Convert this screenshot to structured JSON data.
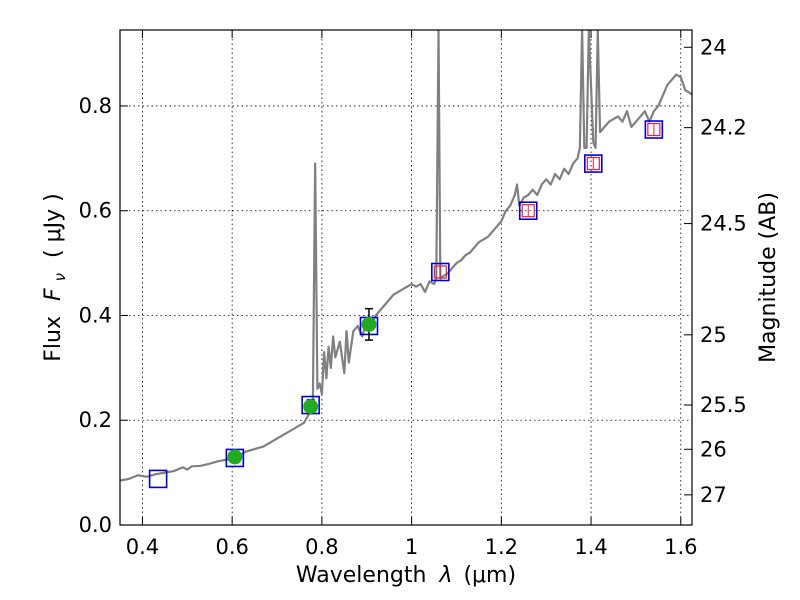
{
  "chart_data": {
    "type": "scatter",
    "xlabel_prefix": "Wavelength",
    "xlabel_symbol": "λ",
    "xlabel_unit": "(μm)",
    "ylabel_prefix": "Flux",
    "ylabel_symbol": "F",
    "ylabel_sub": "ν",
    "ylabel_unit": "( μJy )",
    "y2label": "Magnitude (AB)",
    "xlim": [
      0.35,
      1.625
    ],
    "ylim": [
      0.0,
      0.945
    ],
    "grid": true,
    "x_ticks": [
      0.4,
      0.6,
      0.8,
      1.0,
      1.2,
      1.4,
      1.6
    ],
    "x_tick_labels": [
      "0.4",
      "0.6",
      "0.8",
      "1",
      "1.2",
      "1.4",
      "1.6"
    ],
    "y_ticks": [
      0.0,
      0.2,
      0.4,
      0.6,
      0.8
    ],
    "y_tick_labels": [
      "0.0",
      "0.2",
      "0.4",
      "0.6",
      "0.8"
    ],
    "y2_ticks": [
      {
        "mag": 24,
        "label": "24"
      },
      {
        "mag": 24.2,
        "label": "24.2"
      },
      {
        "mag": 24.5,
        "label": "24.5"
      },
      {
        "mag": 25,
        "label": "25"
      },
      {
        "mag": 25.5,
        "label": "25.5"
      },
      {
        "mag": 26,
        "label": "26"
      },
      {
        "mag": 27,
        "label": "27"
      }
    ],
    "model_spectrum": {
      "color": "#808080",
      "points": [
        [
          0.35,
          0.085
        ],
        [
          0.37,
          0.088
        ],
        [
          0.39,
          0.095
        ],
        [
          0.41,
          0.092
        ],
        [
          0.43,
          0.097
        ],
        [
          0.45,
          0.1
        ],
        [
          0.47,
          0.103
        ],
        [
          0.49,
          0.11
        ],
        [
          0.5,
          0.106
        ],
        [
          0.51,
          0.112
        ],
        [
          0.53,
          0.113
        ],
        [
          0.55,
          0.117
        ],
        [
          0.57,
          0.122
        ],
        [
          0.59,
          0.125
        ],
        [
          0.61,
          0.13
        ],
        [
          0.63,
          0.14
        ],
        [
          0.65,
          0.145
        ],
        [
          0.67,
          0.15
        ],
        [
          0.69,
          0.16
        ],
        [
          0.71,
          0.17
        ],
        [
          0.73,
          0.18
        ],
        [
          0.75,
          0.19
        ],
        [
          0.76,
          0.195
        ],
        [
          0.77,
          0.21
        ],
        [
          0.775,
          0.22
        ],
        [
          0.78,
          0.24
        ],
        [
          0.785,
          0.69
        ],
        [
          0.79,
          0.26
        ],
        [
          0.795,
          0.27
        ],
        [
          0.8,
          0.25
        ],
        [
          0.805,
          0.33
        ],
        [
          0.81,
          0.28
        ],
        [
          0.815,
          0.34
        ],
        [
          0.82,
          0.3
        ],
        [
          0.825,
          0.36
        ],
        [
          0.83,
          0.32
        ],
        [
          0.84,
          0.35
        ],
        [
          0.85,
          0.29
        ],
        [
          0.855,
          0.37
        ],
        [
          0.86,
          0.31
        ],
        [
          0.87,
          0.37
        ],
        [
          0.88,
          0.38
        ],
        [
          0.89,
          0.36
        ],
        [
          0.9,
          0.39
        ],
        [
          0.91,
          0.38
        ],
        [
          0.92,
          0.4
        ],
        [
          0.93,
          0.41
        ],
        [
          0.94,
          0.42
        ],
        [
          0.95,
          0.43
        ],
        [
          0.96,
          0.44
        ],
        [
          0.97,
          0.445
        ],
        [
          0.98,
          0.45
        ],
        [
          0.99,
          0.455
        ],
        [
          1.0,
          0.46
        ],
        [
          1.01,
          0.455
        ],
        [
          1.02,
          0.46
        ],
        [
          1.03,
          0.445
        ],
        [
          1.04,
          0.465
        ],
        [
          1.05,
          0.46
        ],
        [
          1.055,
          0.47
        ],
        [
          1.06,
          0.945
        ],
        [
          1.064,
          0.47
        ],
        [
          1.07,
          0.475
        ],
        [
          1.08,
          0.48
        ],
        [
          1.09,
          0.49
        ],
        [
          1.1,
          0.5
        ],
        [
          1.11,
          0.505
        ],
        [
          1.12,
          0.515
        ],
        [
          1.13,
          0.52
        ],
        [
          1.14,
          0.53
        ],
        [
          1.15,
          0.54
        ],
        [
          1.16,
          0.545
        ],
        [
          1.17,
          0.55
        ],
        [
          1.18,
          0.56
        ],
        [
          1.19,
          0.57
        ],
        [
          1.2,
          0.58
        ],
        [
          1.21,
          0.6
        ],
        [
          1.22,
          0.61
        ],
        [
          1.23,
          0.63
        ],
        [
          1.235,
          0.65
        ],
        [
          1.24,
          0.61
        ],
        [
          1.25,
          0.625
        ],
        [
          1.26,
          0.63
        ],
        [
          1.27,
          0.64
        ],
        [
          1.28,
          0.63
        ],
        [
          1.29,
          0.65
        ],
        [
          1.3,
          0.66
        ],
        [
          1.31,
          0.65
        ],
        [
          1.32,
          0.67
        ],
        [
          1.33,
          0.66
        ],
        [
          1.34,
          0.68
        ],
        [
          1.35,
          0.67
        ],
        [
          1.36,
          0.69
        ],
        [
          1.37,
          0.7
        ],
        [
          1.375,
          0.72
        ],
        [
          1.38,
          0.945
        ],
        [
          1.385,
          0.72
        ],
        [
          1.39,
          0.72
        ],
        [
          1.395,
          0.945
        ],
        [
          1.405,
          0.73
        ],
        [
          1.41,
          0.72
        ],
        [
          1.415,
          0.945
        ],
        [
          1.42,
          0.75
        ],
        [
          1.43,
          0.76
        ],
        [
          1.44,
          0.77
        ],
        [
          1.45,
          0.775
        ],
        [
          1.46,
          0.78
        ],
        [
          1.47,
          0.77
        ],
        [
          1.48,
          0.79
        ],
        [
          1.49,
          0.76
        ],
        [
          1.5,
          0.77
        ],
        [
          1.51,
          0.78
        ],
        [
          1.52,
          0.79
        ],
        [
          1.53,
          0.77
        ],
        [
          1.54,
          0.79
        ],
        [
          1.55,
          0.8
        ],
        [
          1.56,
          0.82
        ],
        [
          1.57,
          0.84
        ],
        [
          1.58,
          0.85
        ],
        [
          1.59,
          0.86
        ],
        [
          1.6,
          0.855
        ],
        [
          1.61,
          0.83
        ],
        [
          1.62,
          0.825
        ],
        [
          1.625,
          0.822
        ]
      ]
    },
    "model_boxes": [
      {
        "x": 0.435,
        "y": 0.088
      },
      {
        "x": 0.606,
        "y": 0.128
      },
      {
        "x": 0.775,
        "y": 0.229
      },
      {
        "x": 0.905,
        "y": 0.38
      },
      {
        "x": 1.064,
        "y": 0.483
      },
      {
        "x": 1.26,
        "y": 0.6
      },
      {
        "x": 1.405,
        "y": 0.69
      },
      {
        "x": 1.54,
        "y": 0.755
      }
    ],
    "observed_points": [
      {
        "x": 0.606,
        "y": 0.13,
        "err": 0.01
      },
      {
        "x": 0.775,
        "y": 0.226,
        "err": 0.013
      },
      {
        "x": 0.905,
        "y": 0.383,
        "err": 0.03
      }
    ],
    "upper_points": [
      {
        "x": 1.064,
        "y": 0.483,
        "err": 0.01
      },
      {
        "x": 1.26,
        "y": 0.6,
        "err": 0.01
      },
      {
        "x": 1.405,
        "y": 0.69,
        "err": 0.01
      },
      {
        "x": 1.54,
        "y": 0.755,
        "err": 0.01
      }
    ],
    "colors": {
      "box": "#0000dd",
      "observed": "#22aa22",
      "upper": "#dd2244",
      "error": "#000000"
    }
  }
}
